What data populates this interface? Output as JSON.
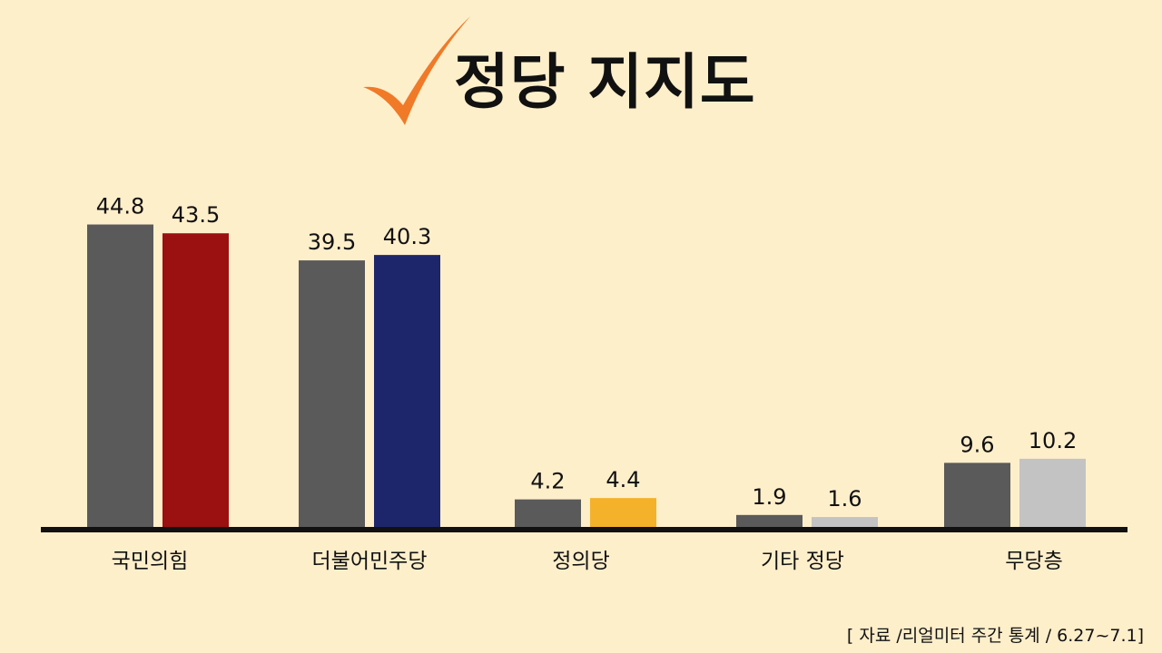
{
  "title": "정당 지지도",
  "source": "[ 자료 /리얼미터 주간 통계 / 6.27~7.1]",
  "icons": {
    "title_mark": "check-mark-icon"
  },
  "colors": {
    "background": "#FEEFCB",
    "check": "#F07A28",
    "previous": "#5A5A5A",
    "axis": "#111111"
  },
  "chart_data": {
    "type": "bar",
    "title": "정당 지지도",
    "xlabel": "",
    "ylabel": "",
    "ylim": [
      0,
      45
    ],
    "grid": false,
    "legend": "none",
    "categories": [
      "국민의힘",
      "더불어민주당",
      "정의당",
      "기타 정당",
      "무당층"
    ],
    "series": [
      {
        "values": [
          44.8,
          39.5,
          4.2,
          1.9,
          9.6
        ],
        "labels": [
          "44.8",
          "39.5",
          "4.2",
          "1.9",
          "9.6"
        ],
        "colors": [
          "#5A5A5A",
          "#5A5A5A",
          "#5A5A5A",
          "#5A5A5A",
          "#5A5A5A"
        ]
      },
      {
        "values": [
          43.5,
          40.3,
          4.4,
          1.6,
          10.2
        ],
        "labels": [
          "43.5",
          "40.3",
          "4.4",
          "1.6",
          "10.2"
        ],
        "colors": [
          "#9B1010",
          "#1E266B",
          "#F4B12A",
          "#C3C3C3",
          "#C3C3C3"
        ]
      }
    ]
  }
}
